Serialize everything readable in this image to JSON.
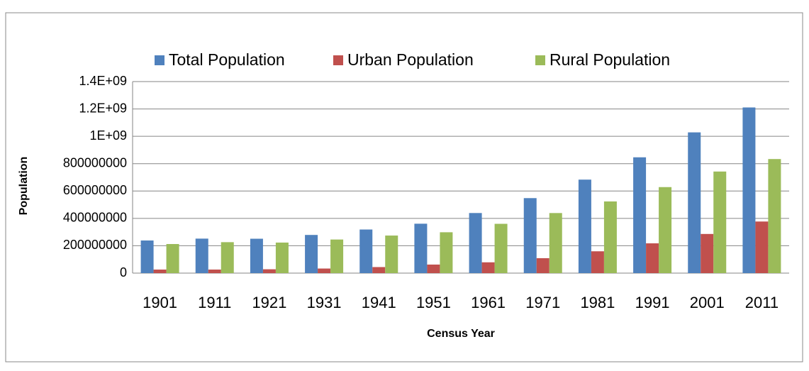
{
  "chart_data": {
    "type": "bar",
    "x_label": "Census Year",
    "y_label": "Population",
    "categories": [
      "1901",
      "1911",
      "1921",
      "1931",
      "1941",
      "1951",
      "1961",
      "1971",
      "1981",
      "1991",
      "2001",
      "2011"
    ],
    "series": [
      {
        "name": "Total Population",
        "color": "#4f81bd",
        "values": [
          238396327,
          252093390,
          251321213,
          278977238,
          318660580,
          361088090,
          439234771,
          548159652,
          683329097,
          846421039,
          1028737436,
          1210854977
        ]
      },
      {
        "name": "Urban Population",
        "color": "#c0504d",
        "values": [
          25851873,
          25941633,
          28086167,
          33455989,
          44153297,
          62443709,
          78936603,
          109113977,
          159462547,
          217611012,
          286119689,
          377106125
        ]
      },
      {
        "name": "Rural Population",
        "color": "#9bbb59",
        "values": [
          212544454,
          226151757,
          223235046,
          245521249,
          274507283,
          298644381,
          360298168,
          439045675,
          523866550,
          628691676,
          742490639,
          833748852
        ]
      }
    ],
    "ylim": [
      0,
      1400000000
    ],
    "yticks": [
      0,
      200000000,
      400000000,
      600000000,
      800000000,
      {
        "value": 1000000000,
        "label": "1E+09"
      },
      {
        "value": 1200000000,
        "label": "1.2E+09"
      },
      {
        "value": 1400000000,
        "label": "1.4E+09"
      }
    ],
    "grid": true,
    "legend": "top"
  }
}
